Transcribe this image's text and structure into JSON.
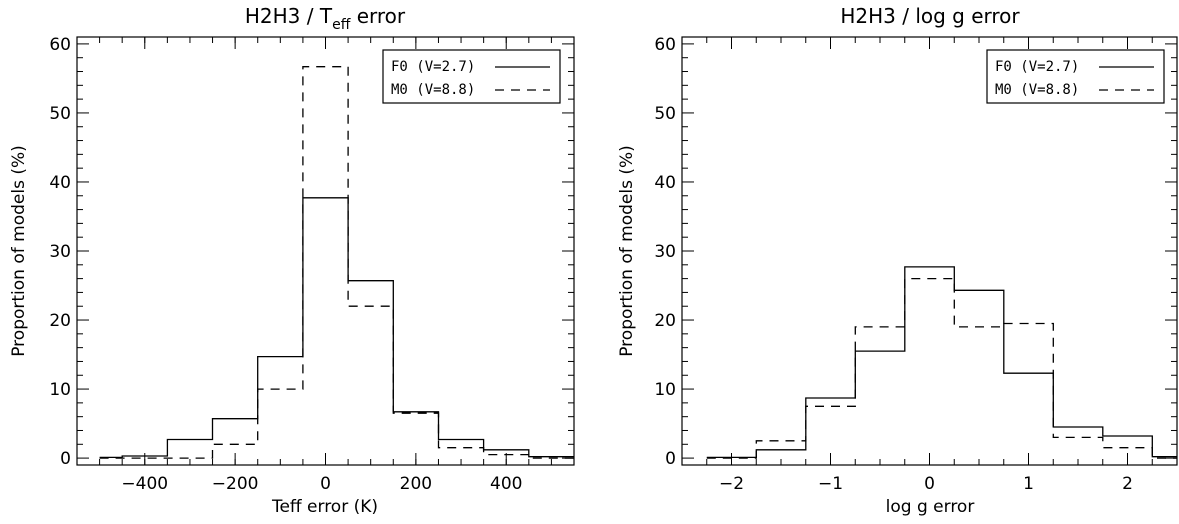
{
  "chart_data": [
    {
      "type": "histogram",
      "title": "H2H3 / T_eff error",
      "title_main": "H2H3 / T",
      "title_sub": "eff",
      "title_tail": " error",
      "xlabel": "Teff error (K)",
      "ylabel": "Proportion of models (%)",
      "xlim": [
        -550,
        550
      ],
      "ylim": [
        -1,
        61
      ],
      "xticks": [
        -400,
        -200,
        0,
        200,
        400
      ],
      "yticks": [
        0,
        10,
        20,
        30,
        40,
        50,
        60
      ],
      "bin_edges": [
        -500,
        -450,
        -350,
        -250,
        -150,
        -50,
        50,
        150,
        250,
        350,
        450,
        550
      ],
      "legend_position": "top-right",
      "series": [
        {
          "name": "F0 (V=2.7)",
          "style": "solid",
          "values": [
            0.1,
            0.3,
            2.7,
            5.7,
            14.7,
            37.7,
            25.7,
            6.7,
            2.7,
            1.2,
            0.2
          ]
        },
        {
          "name": "M0 (V=8.8)",
          "style": "dashed",
          "values": [
            0,
            0,
            0,
            2.0,
            10.0,
            56.7,
            22.0,
            6.5,
            1.5,
            0.5,
            0
          ]
        }
      ]
    },
    {
      "type": "histogram",
      "title": "H2H3 / log g error",
      "title_main": "H2H3 / log g error",
      "title_sub": "",
      "title_tail": "",
      "xlabel": "log g error",
      "ylabel": "Proportion of models (%)",
      "xlim": [
        -2.5,
        2.5
      ],
      "ylim": [
        -1,
        61
      ],
      "xticks": [
        -2,
        -1,
        0,
        1,
        2
      ],
      "yticks": [
        0,
        10,
        20,
        30,
        40,
        50,
        60
      ],
      "bin_edges": [
        -2.25,
        -1.75,
        -1.25,
        -0.75,
        -0.25,
        0.25,
        0.75,
        1.25,
        1.75,
        2.25,
        2.5
      ],
      "legend_position": "top-right",
      "series": [
        {
          "name": "F0 (V=2.7)",
          "style": "solid",
          "values": [
            0.1,
            1.2,
            8.7,
            15.5,
            27.7,
            24.3,
            12.3,
            4.5,
            3.2,
            0.2
          ]
        },
        {
          "name": "M0 (V=8.8)",
          "style": "dashed",
          "values": [
            0,
            2.5,
            7.5,
            19.0,
            26.0,
            19.0,
            19.5,
            3.0,
            1.5,
            0
          ]
        }
      ]
    }
  ]
}
